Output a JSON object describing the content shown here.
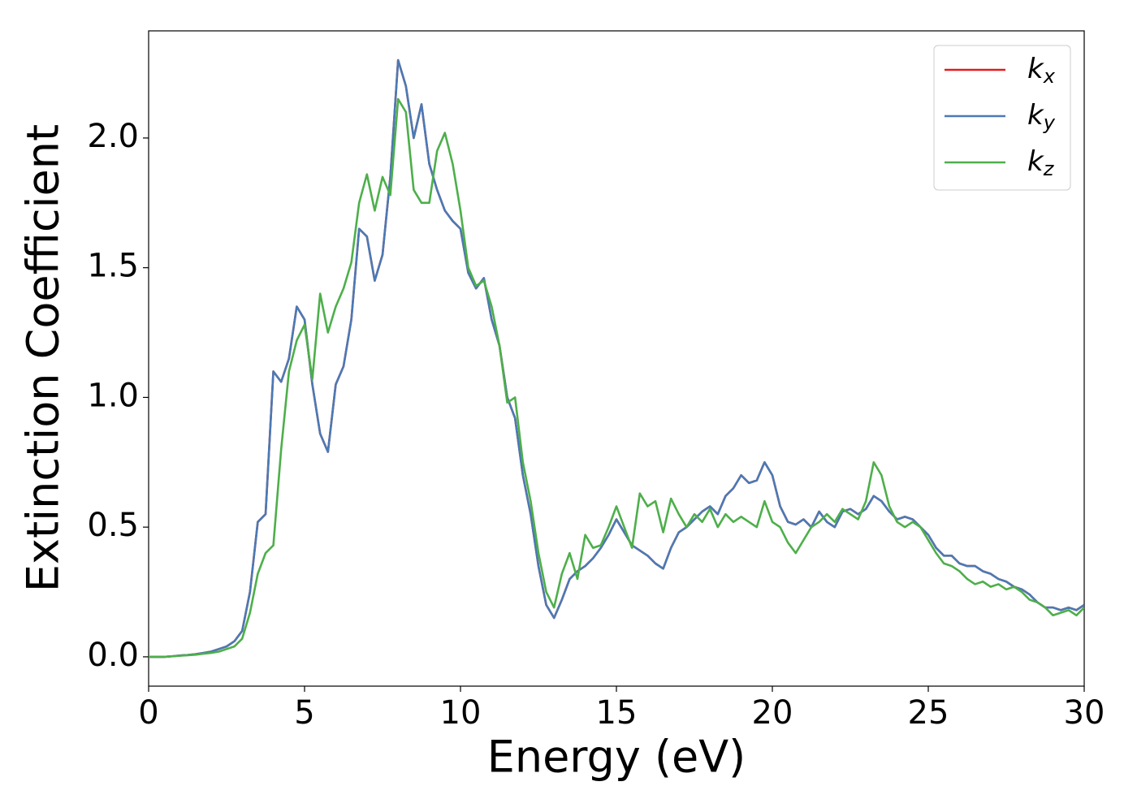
{
  "chart_data": {
    "type": "line",
    "xlabel": "Energy (eV)",
    "ylabel": "Extinction Coefficient",
    "xlim": [
      0,
      30
    ],
    "ylim": [
      -0.113,
      2.413
    ],
    "xticks": [
      0,
      5,
      10,
      15,
      20,
      25,
      30
    ],
    "yticks": [
      {
        "value": 0,
        "label": "0.0"
      },
      {
        "value": 0.5,
        "label": "0.5"
      },
      {
        "value": 1,
        "label": "1.0"
      },
      {
        "value": 1.5,
        "label": "1.5"
      },
      {
        "value": 2,
        "label": "2.0"
      }
    ],
    "legend": "upper right",
    "grid": false,
    "x": [
      0,
      0.25,
      0.5,
      0.75,
      1,
      1.25,
      1.5,
      1.75,
      2,
      2.25,
      2.5,
      2.75,
      3,
      3.25,
      3.5,
      3.75,
      4,
      4.25,
      4.5,
      4.75,
      5,
      5.25,
      5.5,
      5.75,
      6,
      6.25,
      6.5,
      6.75,
      7,
      7.25,
      7.5,
      7.75,
      8,
      8.25,
      8.5,
      8.75,
      9,
      9.25,
      9.5,
      9.75,
      10,
      10.25,
      10.5,
      10.75,
      11,
      11.25,
      11.5,
      11.75,
      12,
      12.25,
      12.5,
      12.75,
      13,
      13.25,
      13.5,
      13.75,
      14,
      14.25,
      14.5,
      14.75,
      15,
      15.25,
      15.5,
      15.75,
      16,
      16.25,
      16.5,
      16.75,
      17,
      17.25,
      17.5,
      17.75,
      18,
      18.25,
      18.5,
      18.75,
      19,
      19.25,
      19.5,
      19.75,
      20,
      20.25,
      20.5,
      20.75,
      21,
      21.25,
      21.5,
      21.75,
      22,
      22.25,
      22.5,
      22.75,
      23,
      23.25,
      23.5,
      23.75,
      24,
      24.25,
      24.5,
      24.75,
      25,
      25.25,
      25.5,
      25.75,
      26,
      26.25,
      26.5,
      26.75,
      27,
      27.25,
      27.5,
      27.75,
      28,
      28.25,
      28.5,
      28.75,
      29,
      29.25,
      29.5,
      29.75,
      30
    ],
    "series": [
      {
        "name": "kx",
        "color": "#e41a1c",
        "values": [
          0,
          0,
          0,
          0.002,
          0.005,
          0.007,
          0.01,
          0.015,
          0.02,
          0.03,
          0.04,
          0.06,
          0.1,
          0.25,
          0.52,
          0.55,
          1.1,
          1.06,
          1.15,
          1.35,
          1.3,
          1.05,
          0.86,
          0.79,
          1.05,
          1.12,
          1.3,
          1.65,
          1.62,
          1.45,
          1.55,
          1.85,
          2.3,
          2.2,
          2.0,
          2.13,
          1.9,
          1.8,
          1.72,
          1.68,
          1.65,
          1.48,
          1.42,
          1.46,
          1.3,
          1.2,
          1.0,
          0.92,
          0.7,
          0.55,
          0.35,
          0.2,
          0.15,
          0.22,
          0.3,
          0.33,
          0.35,
          0.38,
          0.42,
          0.47,
          0.53,
          0.48,
          0.43,
          0.41,
          0.39,
          0.36,
          0.34,
          0.42,
          0.48,
          0.5,
          0.53,
          0.56,
          0.58,
          0.55,
          0.62,
          0.65,
          0.7,
          0.67,
          0.68,
          0.75,
          0.7,
          0.58,
          0.52,
          0.51,
          0.53,
          0.5,
          0.56,
          0.52,
          0.5,
          0.56,
          0.57,
          0.55,
          0.57,
          0.62,
          0.6,
          0.56,
          0.53,
          0.54,
          0.53,
          0.5,
          0.47,
          0.42,
          0.39,
          0.39,
          0.36,
          0.35,
          0.35,
          0.33,
          0.32,
          0.3,
          0.29,
          0.27,
          0.26,
          0.24,
          0.21,
          0.19,
          0.19,
          0.18,
          0.19,
          0.18,
          0.2
        ]
      },
      {
        "name": "ky",
        "color": "#4a7ab5",
        "values": [
          0,
          0,
          0,
          0.002,
          0.005,
          0.007,
          0.01,
          0.015,
          0.02,
          0.03,
          0.04,
          0.06,
          0.1,
          0.25,
          0.52,
          0.55,
          1.1,
          1.06,
          1.15,
          1.35,
          1.3,
          1.05,
          0.86,
          0.79,
          1.05,
          1.12,
          1.3,
          1.65,
          1.62,
          1.45,
          1.55,
          1.85,
          2.3,
          2.2,
          2.0,
          2.13,
          1.9,
          1.8,
          1.72,
          1.68,
          1.65,
          1.48,
          1.42,
          1.46,
          1.3,
          1.2,
          1.0,
          0.92,
          0.7,
          0.55,
          0.35,
          0.2,
          0.15,
          0.22,
          0.3,
          0.33,
          0.35,
          0.38,
          0.42,
          0.47,
          0.53,
          0.48,
          0.43,
          0.41,
          0.39,
          0.36,
          0.34,
          0.42,
          0.48,
          0.5,
          0.53,
          0.56,
          0.58,
          0.55,
          0.62,
          0.65,
          0.7,
          0.67,
          0.68,
          0.75,
          0.7,
          0.58,
          0.52,
          0.51,
          0.53,
          0.5,
          0.56,
          0.52,
          0.5,
          0.56,
          0.57,
          0.55,
          0.57,
          0.62,
          0.6,
          0.56,
          0.53,
          0.54,
          0.53,
          0.5,
          0.47,
          0.42,
          0.39,
          0.39,
          0.36,
          0.35,
          0.35,
          0.33,
          0.32,
          0.3,
          0.29,
          0.27,
          0.26,
          0.24,
          0.21,
          0.19,
          0.19,
          0.18,
          0.19,
          0.18,
          0.2
        ]
      },
      {
        "name": "kz",
        "color": "#4daf4a",
        "values": [
          0,
          0,
          0,
          0.002,
          0.004,
          0.006,
          0.008,
          0.012,
          0.015,
          0.02,
          0.03,
          0.04,
          0.07,
          0.17,
          0.32,
          0.4,
          0.43,
          0.8,
          1.1,
          1.22,
          1.28,
          1.07,
          1.4,
          1.25,
          1.35,
          1.42,
          1.52,
          1.75,
          1.86,
          1.72,
          1.85,
          1.78,
          2.15,
          2.1,
          1.8,
          1.75,
          1.75,
          1.95,
          2.02,
          1.9,
          1.72,
          1.5,
          1.43,
          1.45,
          1.35,
          1.2,
          0.98,
          1.0,
          0.75,
          0.6,
          0.4,
          0.25,
          0.19,
          0.32,
          0.4,
          0.3,
          0.47,
          0.42,
          0.43,
          0.5,
          0.58,
          0.5,
          0.42,
          0.63,
          0.58,
          0.6,
          0.48,
          0.61,
          0.55,
          0.5,
          0.55,
          0.52,
          0.57,
          0.5,
          0.55,
          0.52,
          0.54,
          0.52,
          0.5,
          0.6,
          0.52,
          0.5,
          0.44,
          0.4,
          0.45,
          0.5,
          0.52,
          0.55,
          0.52,
          0.57,
          0.55,
          0.53,
          0.6,
          0.75,
          0.7,
          0.58,
          0.52,
          0.5,
          0.52,
          0.5,
          0.45,
          0.4,
          0.36,
          0.35,
          0.33,
          0.3,
          0.28,
          0.29,
          0.27,
          0.28,
          0.26,
          0.27,
          0.25,
          0.22,
          0.21,
          0.19,
          0.16,
          0.17,
          0.18,
          0.16,
          0.19
        ]
      }
    ]
  }
}
